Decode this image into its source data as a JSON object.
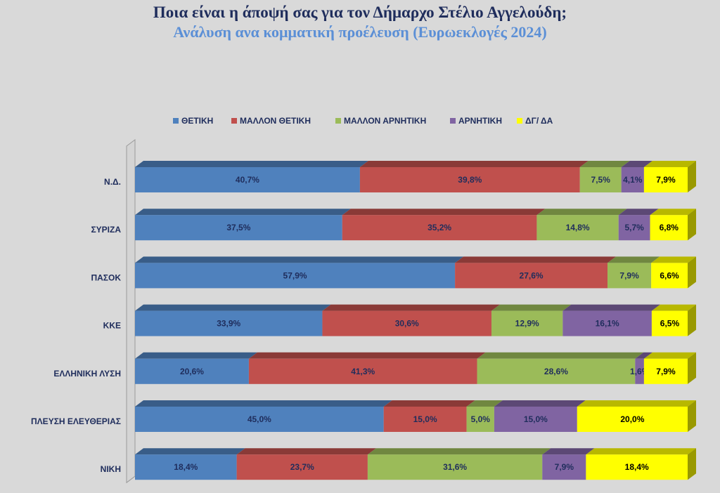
{
  "header": {
    "title": "Ποια είναι η άποψή σας για τον Δήμαρχο Στέλιο Αγγελούδη;",
    "subtitle": "Ανάλυση ανα κομματική προέλευση (Ευρωεκλογές 2024)"
  },
  "chart_data": {
    "type": "bar",
    "orientation": "horizontal",
    "stacked": true,
    "percent": true,
    "style": "3d",
    "legend_position": "top",
    "title": "Ποια είναι η άποψή σας για τον Δήμαρχο Στέλιο Αγγελούδη;",
    "subtitle": "Ανάλυση ανα κομματική προέλευση (Ευρωεκλογές 2024)",
    "categories": [
      "Ν.Δ.",
      "ΣΥΡΙΖΑ",
      "ΠΑΣΟΚ",
      "ΚΚΕ",
      "ΕΛΛΗΝΙΚΗ ΛΥΣΗ",
      "ΠΛΕΥΣΗ ΕΛΕΥΘΕΡΙΑΣ",
      "ΝΙΚΗ"
    ],
    "series": [
      {
        "name": "ΘΕΤΙΚΗ",
        "color": "#4f81bd",
        "values": [
          40.7,
          37.5,
          57.9,
          33.9,
          20.6,
          45.0,
          18.4
        ],
        "labels": [
          "40,7%",
          "37,5%",
          "57,9%",
          "33,9%",
          "20,6%",
          "45,0%",
          "18,4%"
        ]
      },
      {
        "name": "ΜΑΛΛΟΝ ΘΕΤΙΚΗ",
        "color": "#c0504d",
        "values": [
          39.8,
          35.2,
          27.6,
          30.6,
          41.3,
          15.0,
          23.7
        ],
        "labels": [
          "39,8%",
          "35,2%",
          "27,6%",
          "30,6%",
          "41,3%",
          "15,0%",
          "23,7%"
        ]
      },
      {
        "name": "ΜΑΛΛΟΝ ΑΡΝΗΤΙΚΗ",
        "color": "#9bbb59",
        "values": [
          7.5,
          14.8,
          7.9,
          12.9,
          28.6,
          5.0,
          31.6
        ],
        "labels": [
          "7,5%",
          "14,8%",
          "7,9%",
          "12,9%",
          "28,6%",
          "5,0%",
          "31,6%"
        ]
      },
      {
        "name": "ΑΡΝΗΤΙΚΗ",
        "color": "#8064a2",
        "values": [
          4.1,
          5.7,
          0.0,
          16.1,
          1.6,
          15.0,
          7.9
        ],
        "labels": [
          "4,1%",
          "5,7%",
          "",
          "16,1%",
          "1,6%",
          "15,0%",
          "7,9%"
        ]
      },
      {
        "name": "ΔΓ/ ΔΑ",
        "color": "#ffff00",
        "values": [
          7.9,
          6.8,
          6.6,
          6.5,
          7.9,
          20.0,
          18.4
        ],
        "labels": [
          "7,9%",
          "6,8%",
          "6,6%",
          "6,5%",
          "7,9%",
          "20,0%",
          "18,4%"
        ]
      }
    ]
  }
}
